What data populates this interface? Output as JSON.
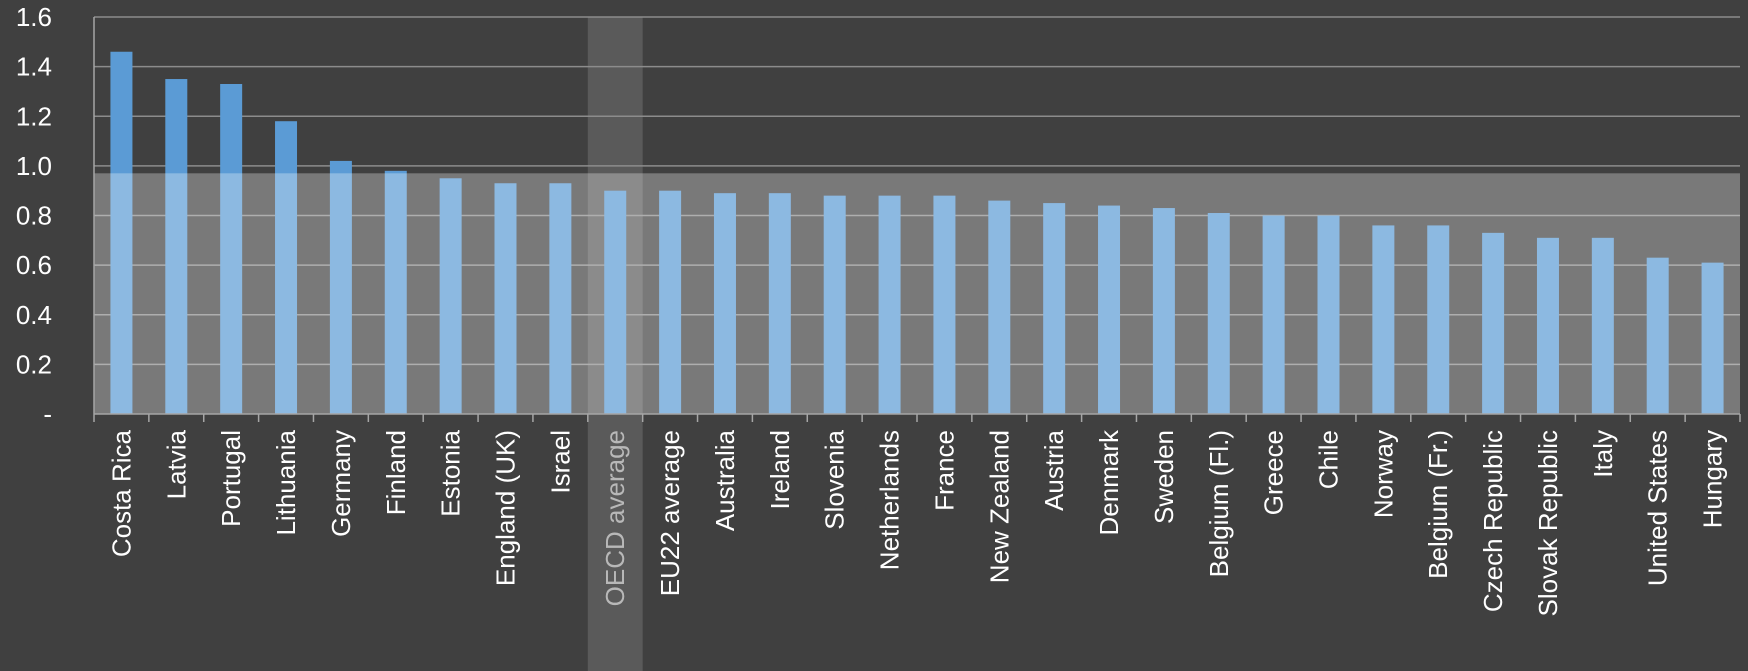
{
  "chart_data": {
    "type": "bar",
    "title": "",
    "xlabel": "",
    "ylabel": "",
    "ylim": [
      0,
      1.6
    ],
    "yticks": [
      {
        "value": 0,
        "label": "-"
      },
      {
        "value": 0.2,
        "label": "0.2"
      },
      {
        "value": 0.4,
        "label": "0.4"
      },
      {
        "value": 0.6,
        "label": "0.6"
      },
      {
        "value": 0.8,
        "label": "0.8"
      },
      {
        "value": 1.0,
        "label": "1.0"
      },
      {
        "value": 1.2,
        "label": "1.2"
      },
      {
        "value": 1.4,
        "label": "1.4"
      },
      {
        "value": 1.6,
        "label": "1.6"
      }
    ],
    "grid": true,
    "categories": [
      "Costa Rica",
      "Latvia",
      "Portugal",
      "Lithuania",
      "Germany",
      "Finland",
      "Estonia",
      "England (UK)",
      "Israel",
      "OECD average",
      "EU22 average",
      "Australia",
      "Ireland",
      "Slovenia",
      "Netherlands",
      "France",
      "New Zealand",
      "Austria",
      "Denmark",
      "Sweden",
      "Belgium (Fl.)",
      "Greece",
      "Chile",
      "Norway",
      "Belgium (Fr.)",
      "Czech Republic",
      "Slovak Republic",
      "Italy",
      "United States",
      "Hungary"
    ],
    "values": [
      1.46,
      1.35,
      1.33,
      1.18,
      1.02,
      0.98,
      0.95,
      0.93,
      0.93,
      0.9,
      0.9,
      0.89,
      0.89,
      0.88,
      0.88,
      0.88,
      0.86,
      0.85,
      0.84,
      0.83,
      0.81,
      0.8,
      0.8,
      0.76,
      0.76,
      0.73,
      0.71,
      0.71,
      0.63,
      0.61
    ],
    "highlighted_category": "OECD average",
    "overlay_band_top": 0.97,
    "colors": {
      "background": "#404040",
      "bar": "#5b9bd5",
      "gridline": "#8c8c8c",
      "axis": "#a6a6a6",
      "overlay": "#ffffff",
      "highlight_column": "#5a5a5a",
      "text": "#ffffff",
      "highlight_text": "#b8b8b8"
    }
  }
}
